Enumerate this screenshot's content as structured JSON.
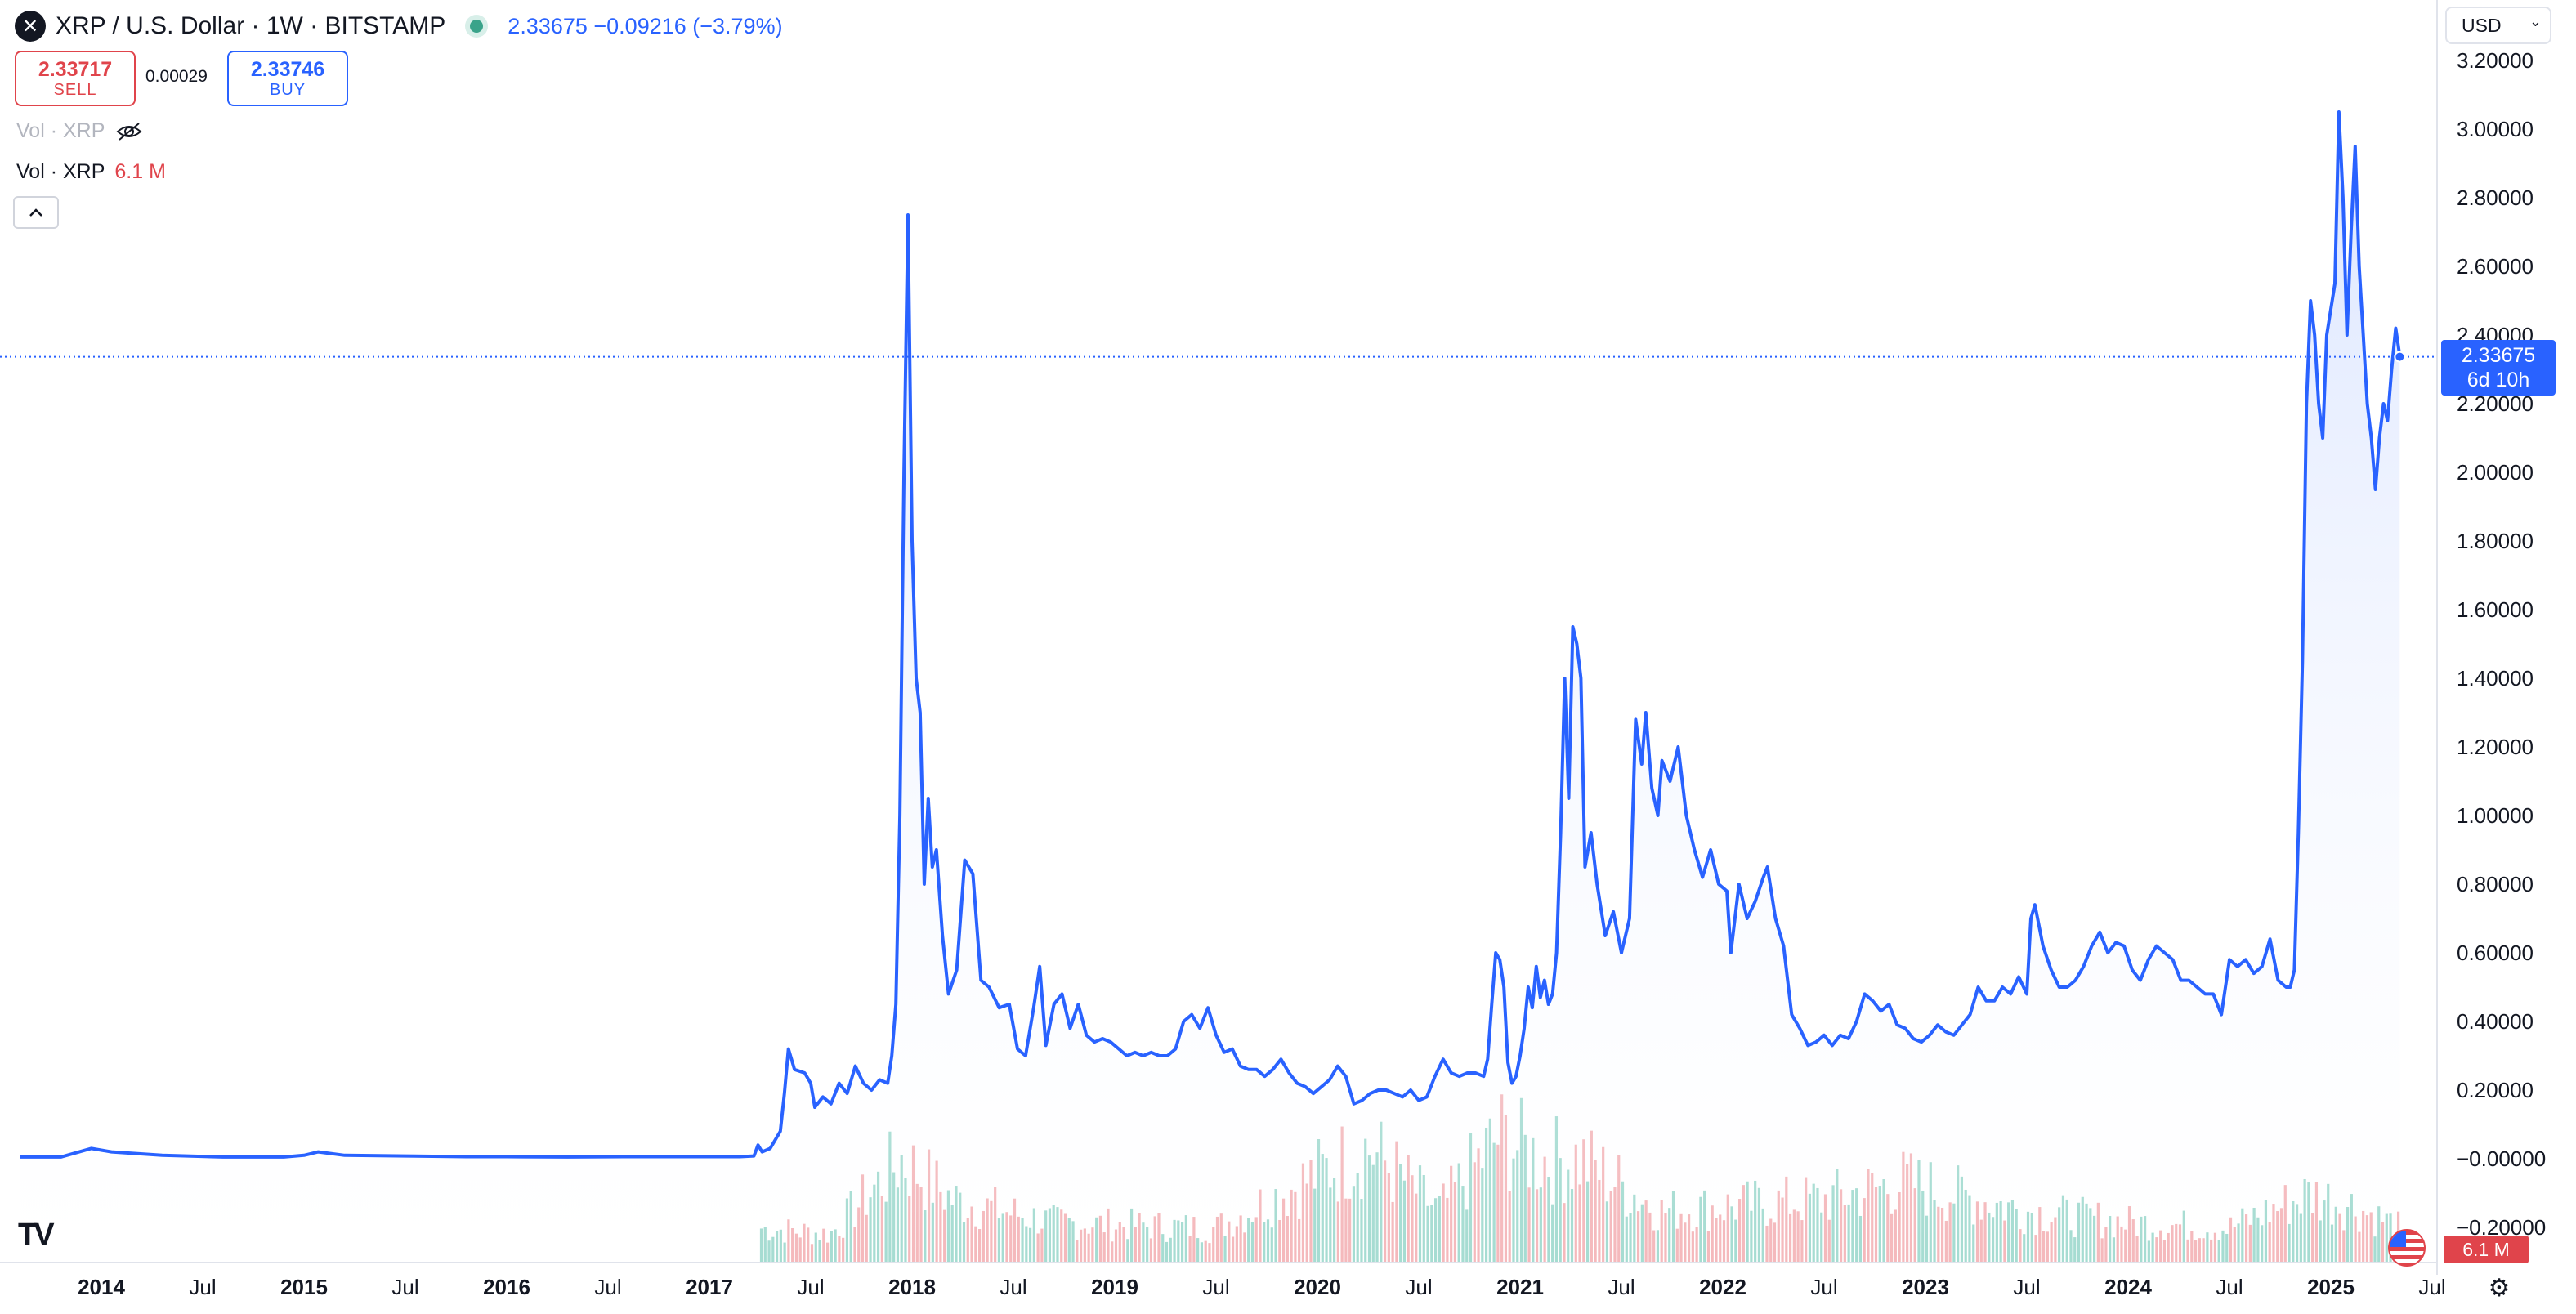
{
  "header": {
    "title": "XRP / U.S. Dollar · 1W · BITSTAMP",
    "logo_glyph": "✕",
    "price_info": "2.33675 −0.09216 (−3.79%)"
  },
  "trade": {
    "sell_price": "2.33717",
    "sell_label": "SELL",
    "spread": "0.00029",
    "buy_price": "2.33746",
    "buy_label": "BUY"
  },
  "volume_legends": {
    "hidden_label": "Vol · XRP",
    "label": "Vol · XRP",
    "value": "6.1 M"
  },
  "controls": {
    "currency": "USD",
    "collapse_icon": "chevron-up-icon",
    "settings_icon": "gear-icon"
  },
  "axis_labels": {
    "last_price": "2.33675",
    "countdown": "6d 10h",
    "volume_badge": "6.1 M"
  },
  "colors": {
    "line": "#2962ff",
    "area_top": "#dbe5ff",
    "volume_up": "#8fd3c6",
    "volume_down": "#f2a7ab",
    "sell": "#e0444b",
    "buy": "#2962ff"
  },
  "chart_data": {
    "type": "area",
    "series": [
      {
        "values": [
          [
            2013.6,
            0.005
          ],
          [
            2013.8,
            0.005
          ],
          [
            2013.95,
            0.03
          ],
          [
            2014.05,
            0.02
          ],
          [
            2014.3,
            0.01
          ],
          [
            2014.6,
            0.005
          ],
          [
            2014.9,
            0.005
          ],
          [
            2015.0,
            0.01
          ],
          [
            2015.07,
            0.02
          ],
          [
            2015.2,
            0.01
          ],
          [
            2015.5,
            0.008
          ],
          [
            2015.8,
            0.006
          ],
          [
            2016.0,
            0.006
          ],
          [
            2016.3,
            0.005
          ],
          [
            2016.6,
            0.006
          ],
          [
            2016.9,
            0.006
          ],
          [
            2017.0,
            0.006
          ],
          [
            2017.15,
            0.006
          ],
          [
            2017.22,
            0.008
          ],
          [
            2017.24,
            0.04
          ],
          [
            2017.26,
            0.02
          ],
          [
            2017.3,
            0.03
          ],
          [
            2017.35,
            0.08
          ],
          [
            2017.37,
            0.19
          ],
          [
            2017.39,
            0.32
          ],
          [
            2017.42,
            0.26
          ],
          [
            2017.47,
            0.25
          ],
          [
            2017.5,
            0.22
          ],
          [
            2017.52,
            0.15
          ],
          [
            2017.56,
            0.18
          ],
          [
            2017.6,
            0.16
          ],
          [
            2017.64,
            0.22
          ],
          [
            2017.68,
            0.19
          ],
          [
            2017.72,
            0.27
          ],
          [
            2017.76,
            0.22
          ],
          [
            2017.8,
            0.2
          ],
          [
            2017.84,
            0.23
          ],
          [
            2017.88,
            0.22
          ],
          [
            2017.9,
            0.3
          ],
          [
            2017.92,
            0.45
          ],
          [
            2017.94,
            1.0
          ],
          [
            2017.96,
            2.0
          ],
          [
            2017.98,
            2.75
          ],
          [
            2018.0,
            1.8
          ],
          [
            2018.02,
            1.4
          ],
          [
            2018.04,
            1.3
          ],
          [
            2018.06,
            0.8
          ],
          [
            2018.08,
            1.05
          ],
          [
            2018.1,
            0.85
          ],
          [
            2018.12,
            0.9
          ],
          [
            2018.15,
            0.65
          ],
          [
            2018.18,
            0.48
          ],
          [
            2018.22,
            0.55
          ],
          [
            2018.26,
            0.87
          ],
          [
            2018.3,
            0.83
          ],
          [
            2018.34,
            0.52
          ],
          [
            2018.38,
            0.5
          ],
          [
            2018.43,
            0.44
          ],
          [
            2018.48,
            0.45
          ],
          [
            2018.52,
            0.32
          ],
          [
            2018.56,
            0.3
          ],
          [
            2018.6,
            0.44
          ],
          [
            2018.63,
            0.56
          ],
          [
            2018.66,
            0.33
          ],
          [
            2018.7,
            0.45
          ],
          [
            2018.74,
            0.48
          ],
          [
            2018.78,
            0.38
          ],
          [
            2018.82,
            0.45
          ],
          [
            2018.86,
            0.36
          ],
          [
            2018.9,
            0.34
          ],
          [
            2018.94,
            0.35
          ],
          [
            2018.98,
            0.34
          ],
          [
            2019.02,
            0.32
          ],
          [
            2019.06,
            0.3
          ],
          [
            2019.1,
            0.31
          ],
          [
            2019.14,
            0.3
          ],
          [
            2019.18,
            0.31
          ],
          [
            2019.22,
            0.3
          ],
          [
            2019.26,
            0.3
          ],
          [
            2019.3,
            0.32
          ],
          [
            2019.34,
            0.4
          ],
          [
            2019.38,
            0.42
          ],
          [
            2019.42,
            0.38
          ],
          [
            2019.46,
            0.44
          ],
          [
            2019.5,
            0.36
          ],
          [
            2019.54,
            0.31
          ],
          [
            2019.58,
            0.32
          ],
          [
            2019.62,
            0.27
          ],
          [
            2019.66,
            0.26
          ],
          [
            2019.7,
            0.26
          ],
          [
            2019.74,
            0.24
          ],
          [
            2019.78,
            0.26
          ],
          [
            2019.82,
            0.29
          ],
          [
            2019.86,
            0.25
          ],
          [
            2019.9,
            0.22
          ],
          [
            2019.94,
            0.21
          ],
          [
            2019.98,
            0.19
          ],
          [
            2020.02,
            0.21
          ],
          [
            2020.06,
            0.23
          ],
          [
            2020.1,
            0.27
          ],
          [
            2020.14,
            0.24
          ],
          [
            2020.18,
            0.16
          ],
          [
            2020.22,
            0.17
          ],
          [
            2020.26,
            0.19
          ],
          [
            2020.3,
            0.2
          ],
          [
            2020.34,
            0.2
          ],
          [
            2020.38,
            0.19
          ],
          [
            2020.42,
            0.18
          ],
          [
            2020.46,
            0.2
          ],
          [
            2020.5,
            0.17
          ],
          [
            2020.54,
            0.18
          ],
          [
            2020.58,
            0.24
          ],
          [
            2020.62,
            0.29
          ],
          [
            2020.66,
            0.25
          ],
          [
            2020.7,
            0.24
          ],
          [
            2020.74,
            0.25
          ],
          [
            2020.78,
            0.25
          ],
          [
            2020.82,
            0.24
          ],
          [
            2020.84,
            0.29
          ],
          [
            2020.86,
            0.45
          ],
          [
            2020.88,
            0.6
          ],
          [
            2020.9,
            0.58
          ],
          [
            2020.92,
            0.5
          ],
          [
            2020.94,
            0.28
          ],
          [
            2020.96,
            0.22
          ],
          [
            2020.98,
            0.24
          ],
          [
            2021.0,
            0.3
          ],
          [
            2021.02,
            0.38
          ],
          [
            2021.04,
            0.5
          ],
          [
            2021.06,
            0.44
          ],
          [
            2021.08,
            0.56
          ],
          [
            2021.1,
            0.47
          ],
          [
            2021.12,
            0.52
          ],
          [
            2021.14,
            0.45
          ],
          [
            2021.16,
            0.48
          ],
          [
            2021.18,
            0.6
          ],
          [
            2021.2,
            0.95
          ],
          [
            2021.22,
            1.4
          ],
          [
            2021.24,
            1.05
          ],
          [
            2021.26,
            1.55
          ],
          [
            2021.28,
            1.5
          ],
          [
            2021.3,
            1.4
          ],
          [
            2021.32,
            0.85
          ],
          [
            2021.35,
            0.95
          ],
          [
            2021.38,
            0.8
          ],
          [
            2021.42,
            0.65
          ],
          [
            2021.46,
            0.72
          ],
          [
            2021.5,
            0.6
          ],
          [
            2021.54,
            0.7
          ],
          [
            2021.57,
            1.28
          ],
          [
            2021.6,
            1.15
          ],
          [
            2021.62,
            1.3
          ],
          [
            2021.65,
            1.08
          ],
          [
            2021.68,
            1.0
          ],
          [
            2021.7,
            1.16
          ],
          [
            2021.74,
            1.1
          ],
          [
            2021.78,
            1.2
          ],
          [
            2021.82,
            1.0
          ],
          [
            2021.86,
            0.9
          ],
          [
            2021.9,
            0.82
          ],
          [
            2021.94,
            0.9
          ],
          [
            2021.98,
            0.8
          ],
          [
            2022.02,
            0.78
          ],
          [
            2022.04,
            0.6
          ],
          [
            2022.08,
            0.8
          ],
          [
            2022.12,
            0.7
          ],
          [
            2022.16,
            0.75
          ],
          [
            2022.2,
            0.82
          ],
          [
            2022.22,
            0.85
          ],
          [
            2022.26,
            0.7
          ],
          [
            2022.3,
            0.62
          ],
          [
            2022.34,
            0.42
          ],
          [
            2022.38,
            0.38
          ],
          [
            2022.42,
            0.33
          ],
          [
            2022.46,
            0.34
          ],
          [
            2022.5,
            0.36
          ],
          [
            2022.54,
            0.33
          ],
          [
            2022.58,
            0.36
          ],
          [
            2022.62,
            0.35
          ],
          [
            2022.66,
            0.4
          ],
          [
            2022.7,
            0.48
          ],
          [
            2022.74,
            0.46
          ],
          [
            2022.78,
            0.43
          ],
          [
            2022.82,
            0.45
          ],
          [
            2022.86,
            0.39
          ],
          [
            2022.9,
            0.38
          ],
          [
            2022.94,
            0.35
          ],
          [
            2022.98,
            0.34
          ],
          [
            2023.02,
            0.36
          ],
          [
            2023.06,
            0.39
          ],
          [
            2023.1,
            0.37
          ],
          [
            2023.14,
            0.36
          ],
          [
            2023.18,
            0.39
          ],
          [
            2023.22,
            0.42
          ],
          [
            2023.26,
            0.5
          ],
          [
            2023.3,
            0.46
          ],
          [
            2023.34,
            0.46
          ],
          [
            2023.38,
            0.5
          ],
          [
            2023.42,
            0.48
          ],
          [
            2023.46,
            0.53
          ],
          [
            2023.5,
            0.48
          ],
          [
            2023.52,
            0.7
          ],
          [
            2023.54,
            0.74
          ],
          [
            2023.58,
            0.62
          ],
          [
            2023.62,
            0.55
          ],
          [
            2023.66,
            0.5
          ],
          [
            2023.7,
            0.5
          ],
          [
            2023.74,
            0.52
          ],
          [
            2023.78,
            0.56
          ],
          [
            2023.82,
            0.62
          ],
          [
            2023.86,
            0.66
          ],
          [
            2023.9,
            0.6
          ],
          [
            2023.94,
            0.63
          ],
          [
            2023.98,
            0.62
          ],
          [
            2024.02,
            0.55
          ],
          [
            2024.06,
            0.52
          ],
          [
            2024.1,
            0.58
          ],
          [
            2024.14,
            0.62
          ],
          [
            2024.18,
            0.6
          ],
          [
            2024.22,
            0.58
          ],
          [
            2024.26,
            0.52
          ],
          [
            2024.3,
            0.52
          ],
          [
            2024.34,
            0.5
          ],
          [
            2024.38,
            0.48
          ],
          [
            2024.42,
            0.48
          ],
          [
            2024.46,
            0.42
          ],
          [
            2024.5,
            0.58
          ],
          [
            2024.54,
            0.56
          ],
          [
            2024.58,
            0.58
          ],
          [
            2024.62,
            0.54
          ],
          [
            2024.66,
            0.56
          ],
          [
            2024.7,
            0.64
          ],
          [
            2024.74,
            0.52
          ],
          [
            2024.78,
            0.5
          ],
          [
            2024.8,
            0.5
          ],
          [
            2024.82,
            0.55
          ],
          [
            2024.84,
            0.95
          ],
          [
            2024.86,
            1.45
          ],
          [
            2024.88,
            2.2
          ],
          [
            2024.9,
            2.5
          ],
          [
            2024.92,
            2.4
          ],
          [
            2024.94,
            2.2
          ],
          [
            2024.96,
            2.1
          ],
          [
            2024.98,
            2.4
          ],
          [
            2025.02,
            2.55
          ],
          [
            2025.04,
            3.05
          ],
          [
            2025.06,
            2.8
          ],
          [
            2025.08,
            2.4
          ],
          [
            2025.1,
            2.7
          ],
          [
            2025.12,
            2.95
          ],
          [
            2025.14,
            2.6
          ],
          [
            2025.16,
            2.4
          ],
          [
            2025.18,
            2.2
          ],
          [
            2025.2,
            2.1
          ],
          [
            2025.22,
            1.95
          ],
          [
            2025.24,
            2.1
          ],
          [
            2025.26,
            2.2
          ],
          [
            2025.28,
            2.15
          ],
          [
            2025.3,
            2.3
          ],
          [
            2025.32,
            2.42
          ],
          [
            2025.34,
            2.34
          ]
        ]
      }
    ],
    "volume_shape": [
      [
        2017.25,
        0.3
      ],
      [
        2017.6,
        0.25
      ],
      [
        2017.95,
        0.9
      ],
      [
        2018.2,
        0.55
      ],
      [
        2018.7,
        0.35
      ],
      [
        2019.5,
        0.3
      ],
      [
        2020.25,
        1.0
      ],
      [
        2020.6,
        0.45
      ],
      [
        2020.9,
        1.1
      ],
      [
        2021.1,
        0.9
      ],
      [
        2021.3,
        0.9
      ],
      [
        2021.7,
        0.45
      ],
      [
        2022.5,
        0.55
      ],
      [
        2022.9,
        0.7
      ],
      [
        2023.5,
        0.45
      ],
      [
        2024.0,
        0.35
      ],
      [
        2024.5,
        0.3
      ],
      [
        2024.9,
        0.6
      ],
      [
        2025.1,
        0.5
      ],
      [
        2025.35,
        0.3
      ]
    ],
    "x_ticks": [
      "2014",
      "Jul",
      "2015",
      "Jul",
      "2016",
      "Jul",
      "2017",
      "Jul",
      "2018",
      "Jul",
      "2019",
      "Jul",
      "2020",
      "Jul",
      "2021",
      "Jul",
      "2022",
      "Jul",
      "2023",
      "Jul",
      "2024",
      "Jul",
      "2025",
      "Jul"
    ],
    "y_ticks": [
      "3.20000",
      "3.00000",
      "2.80000",
      "2.60000",
      "2.40000",
      "2.20000",
      "2.00000",
      "1.80000",
      "1.60000",
      "1.40000",
      "1.20000",
      "1.00000",
      "0.80000",
      "0.60000",
      "0.40000",
      "0.20000",
      "−0.00000",
      "−0.20000"
    ],
    "last_value": 2.33675,
    "grid": false
  }
}
